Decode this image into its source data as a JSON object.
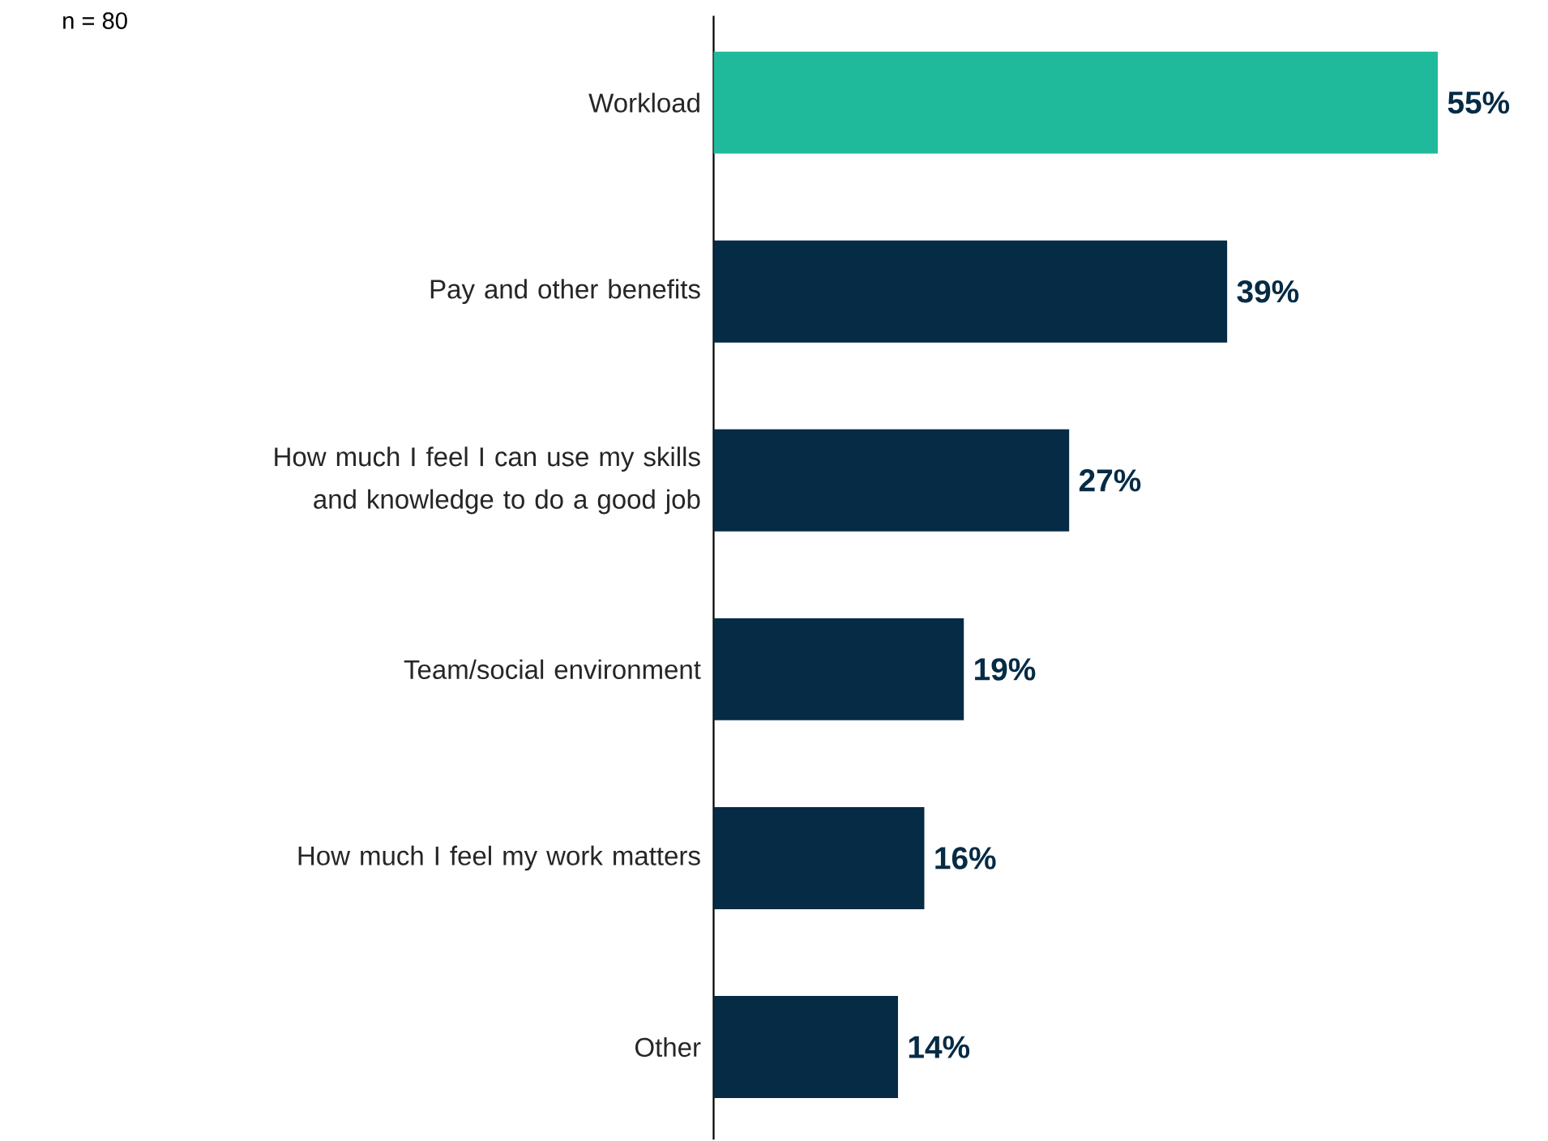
{
  "chart_data": {
    "type": "bar",
    "orientation": "horizontal",
    "categories": [
      "Workload",
      "Pay and other benefits",
      "How much I feel I can use my skills and knowledge to do a good job",
      "Team/social environment",
      "How much I feel my work matters",
      "Other"
    ],
    "values": [
      55,
      39,
      27,
      19,
      16,
      14
    ],
    "value_labels": [
      "55%",
      "39%",
      "27%",
      "19%",
      "16%",
      "14%"
    ],
    "colors": [
      "#1fba9c",
      "#052b45",
      "#052b45",
      "#052b45",
      "#052b45",
      "#052b45"
    ],
    "annotations": [
      "n = 80"
    ],
    "tick_labels": "y"
  }
}
